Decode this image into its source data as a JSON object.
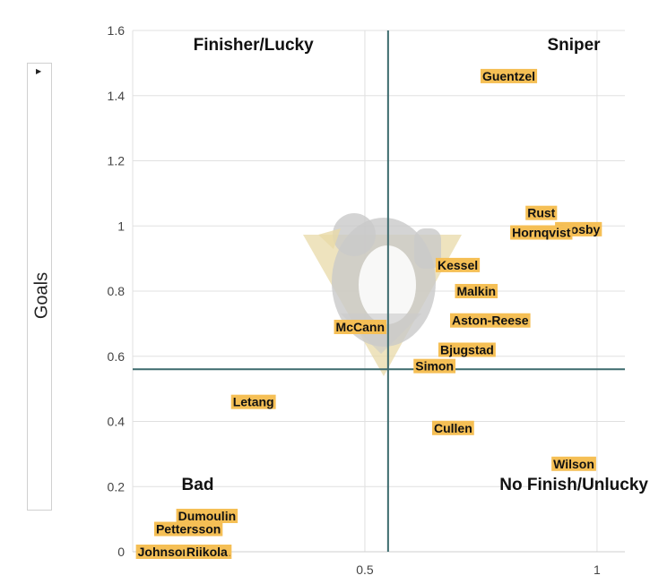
{
  "chart_data": {
    "type": "scatter",
    "ylabel": "Goals",
    "xlabel": "",
    "xlim": [
      0.0,
      1.06
    ],
    "ylim": [
      0,
      1.6
    ],
    "x_ticks": [
      0.5,
      1
    ],
    "x_tick_labels": [
      "0.5",
      "1"
    ],
    "y_ticks": [
      0,
      0.2,
      0.4,
      0.6,
      0.8,
      1.0,
      1.2,
      1.4,
      1.6
    ],
    "y_tick_labels": [
      "0",
      "0.2",
      "0.4",
      "0.6",
      "0.8",
      "1",
      "1.2",
      "1.4",
      "1.6"
    ],
    "grid": true,
    "reference_lines": {
      "x": 0.55,
      "y": 0.56
    },
    "quadrant_labels": {
      "top_left": "Finisher/Lucky",
      "top_right": "Sniper",
      "bottom_left": "Bad",
      "bottom_right": "No Finish/Unlucky"
    },
    "points": [
      {
        "name": "Guentzel",
        "x": 0.81,
        "y": 1.46
      },
      {
        "name": "Rust",
        "x": 0.88,
        "y": 1.04
      },
      {
        "name": "Crosby",
        "x": 0.96,
        "y": 0.99
      },
      {
        "name": "Hornqvist",
        "x": 0.88,
        "y": 0.98
      },
      {
        "name": "Kessel",
        "x": 0.7,
        "y": 0.88
      },
      {
        "name": "Malkin",
        "x": 0.74,
        "y": 0.8
      },
      {
        "name": "Aston-Reese",
        "x": 0.77,
        "y": 0.71
      },
      {
        "name": "McCann",
        "x": 0.49,
        "y": 0.69
      },
      {
        "name": "Bjugstad",
        "x": 0.72,
        "y": 0.62
      },
      {
        "name": "Simon",
        "x": 0.65,
        "y": 0.57
      },
      {
        "name": "Letang",
        "x": 0.26,
        "y": 0.46
      },
      {
        "name": "Cullen",
        "x": 0.69,
        "y": 0.38
      },
      {
        "name": "Wilson",
        "x": 0.95,
        "y": 0.27
      },
      {
        "name": "Dumoulin",
        "x": 0.16,
        "y": 0.11
      },
      {
        "name": "Pettersson",
        "x": 0.12,
        "y": 0.07
      },
      {
        "name": "JohnsonMaatta",
        "x": 0.11,
        "y": 0.0
      },
      {
        "name": "Riikola",
        "x": 0.16,
        "y": 0.0
      }
    ],
    "colors": {
      "label_bg": "#f5bf55",
      "ref_line": "#3d6b6e",
      "grid": "#e0e0e0",
      "logo_grey": "#c9c9c9",
      "logo_gold": "#e8d9a8"
    }
  }
}
